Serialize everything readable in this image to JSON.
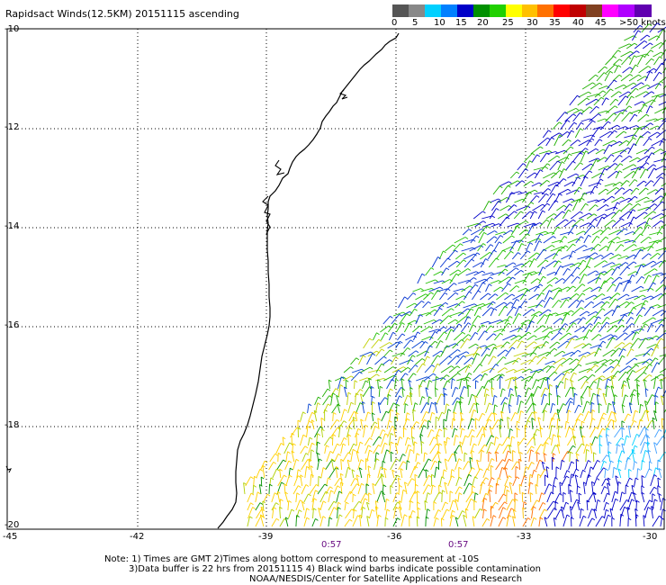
{
  "title": "Rapidsact Winds(12.5KM) 20151115 ascending",
  "legend": {
    "colors": [
      "#555555",
      "#888888",
      "#00d0ff",
      "#0080ff",
      "#0000c8",
      "#009000",
      "#20d000",
      "#ffff00",
      "#ffc000",
      "#ff7000",
      "#ff0000",
      "#c00000",
      "#804020",
      "#ff00ff",
      "#b000ff",
      "#6000b0"
    ],
    "ticks": [
      "0",
      "5",
      "10",
      "15",
      "20",
      "25",
      "30",
      "35",
      "40",
      "45",
      ">50 knots"
    ]
  },
  "axes": {
    "lat_labels": [
      "-10",
      "-12",
      "-14",
      "-16",
      "-18",
      "-20"
    ],
    "lon_labels": [
      "-45",
      "-42",
      "-39",
      "-36",
      "-33",
      "-30"
    ]
  },
  "time_labels": [
    "0:57",
    "0:57"
  ],
  "notes": [
    "Note: 1) Times are GMT 2)Times along bottom correspond to measurement at -10S",
    "3)Data buffer is 22 hrs from 20151115 4) Black wind barbs indicate possible contamination",
    "NOAA/NESDIS/Center for Satellite Applications and Research"
  ]
}
